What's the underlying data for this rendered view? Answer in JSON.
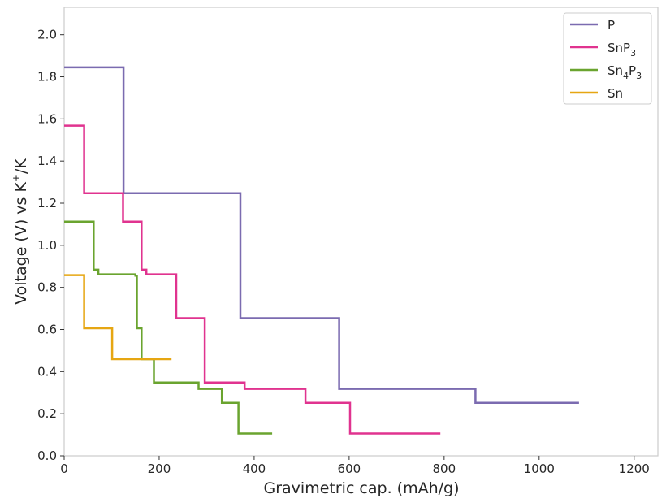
{
  "chart_data": {
    "type": "line",
    "title": "",
    "xlabel": "Gravimetric cap. (mAh/g)",
    "ylabel_parts": {
      "base": "Voltage (V) vs K",
      "sup": "+",
      "suffix": "/K"
    },
    "xlim": [
      0,
      1250
    ],
    "ylim": [
      0,
      2.13
    ],
    "xticks": [
      0,
      200,
      400,
      600,
      800,
      1000,
      1200
    ],
    "yticks": [
      0.0,
      0.2,
      0.4,
      0.6,
      0.8,
      1.0,
      1.2,
      1.4,
      1.6,
      1.8,
      2.0
    ],
    "grid": false,
    "legend_position": "top-right",
    "series": [
      {
        "name": "P",
        "legend": {
          "base": "P",
          "sub1": "",
          "mid": "",
          "sub2": ""
        },
        "color": "#7b6bb0",
        "x": [
          0,
          125,
          125,
          371,
          371,
          579,
          579,
          866,
          866,
          1084
        ],
        "y": [
          1.845,
          1.845,
          1.247,
          1.247,
          0.654,
          0.654,
          0.318,
          0.318,
          0.252,
          0.252
        ]
      },
      {
        "name": "SnP3",
        "legend": {
          "base": "SnP",
          "sub1": "3",
          "mid": "",
          "sub2": ""
        },
        "color": "#e0338f",
        "x": [
          0,
          42,
          42,
          124,
          124,
          163,
          163,
          173,
          173,
          236,
          236,
          296,
          296,
          380,
          380,
          508,
          508,
          602,
          602,
          792
        ],
        "y": [
          1.568,
          1.568,
          1.247,
          1.247,
          1.112,
          1.112,
          0.884,
          0.884,
          0.862,
          0.862,
          0.654,
          0.654,
          0.348,
          0.348,
          0.318,
          0.318,
          0.252,
          0.252,
          0.106,
          0.106
        ]
      },
      {
        "name": "Sn4P3",
        "legend": {
          "base": "Sn",
          "sub1": "4",
          "mid": "P",
          "sub2": "3"
        },
        "color": "#6aa42f",
        "x": [
          0,
          62,
          62,
          72,
          72,
          150,
          150,
          153,
          153,
          163,
          163,
          189,
          189,
          283,
          283,
          332,
          332,
          367,
          367,
          438
        ],
        "y": [
          1.112,
          1.112,
          0.884,
          0.884,
          0.862,
          0.862,
          0.856,
          0.856,
          0.606,
          0.606,
          0.459,
          0.459,
          0.348,
          0.348,
          0.318,
          0.318,
          0.252,
          0.252,
          0.106,
          0.106
        ]
      },
      {
        "name": "Sn",
        "legend": {
          "base": "Sn",
          "sub1": "",
          "mid": "",
          "sub2": ""
        },
        "color": "#e6a612",
        "x": [
          0,
          42,
          42,
          101,
          101,
          226
        ],
        "y": [
          0.858,
          0.858,
          0.606,
          0.606,
          0.459,
          0.459
        ]
      }
    ]
  }
}
